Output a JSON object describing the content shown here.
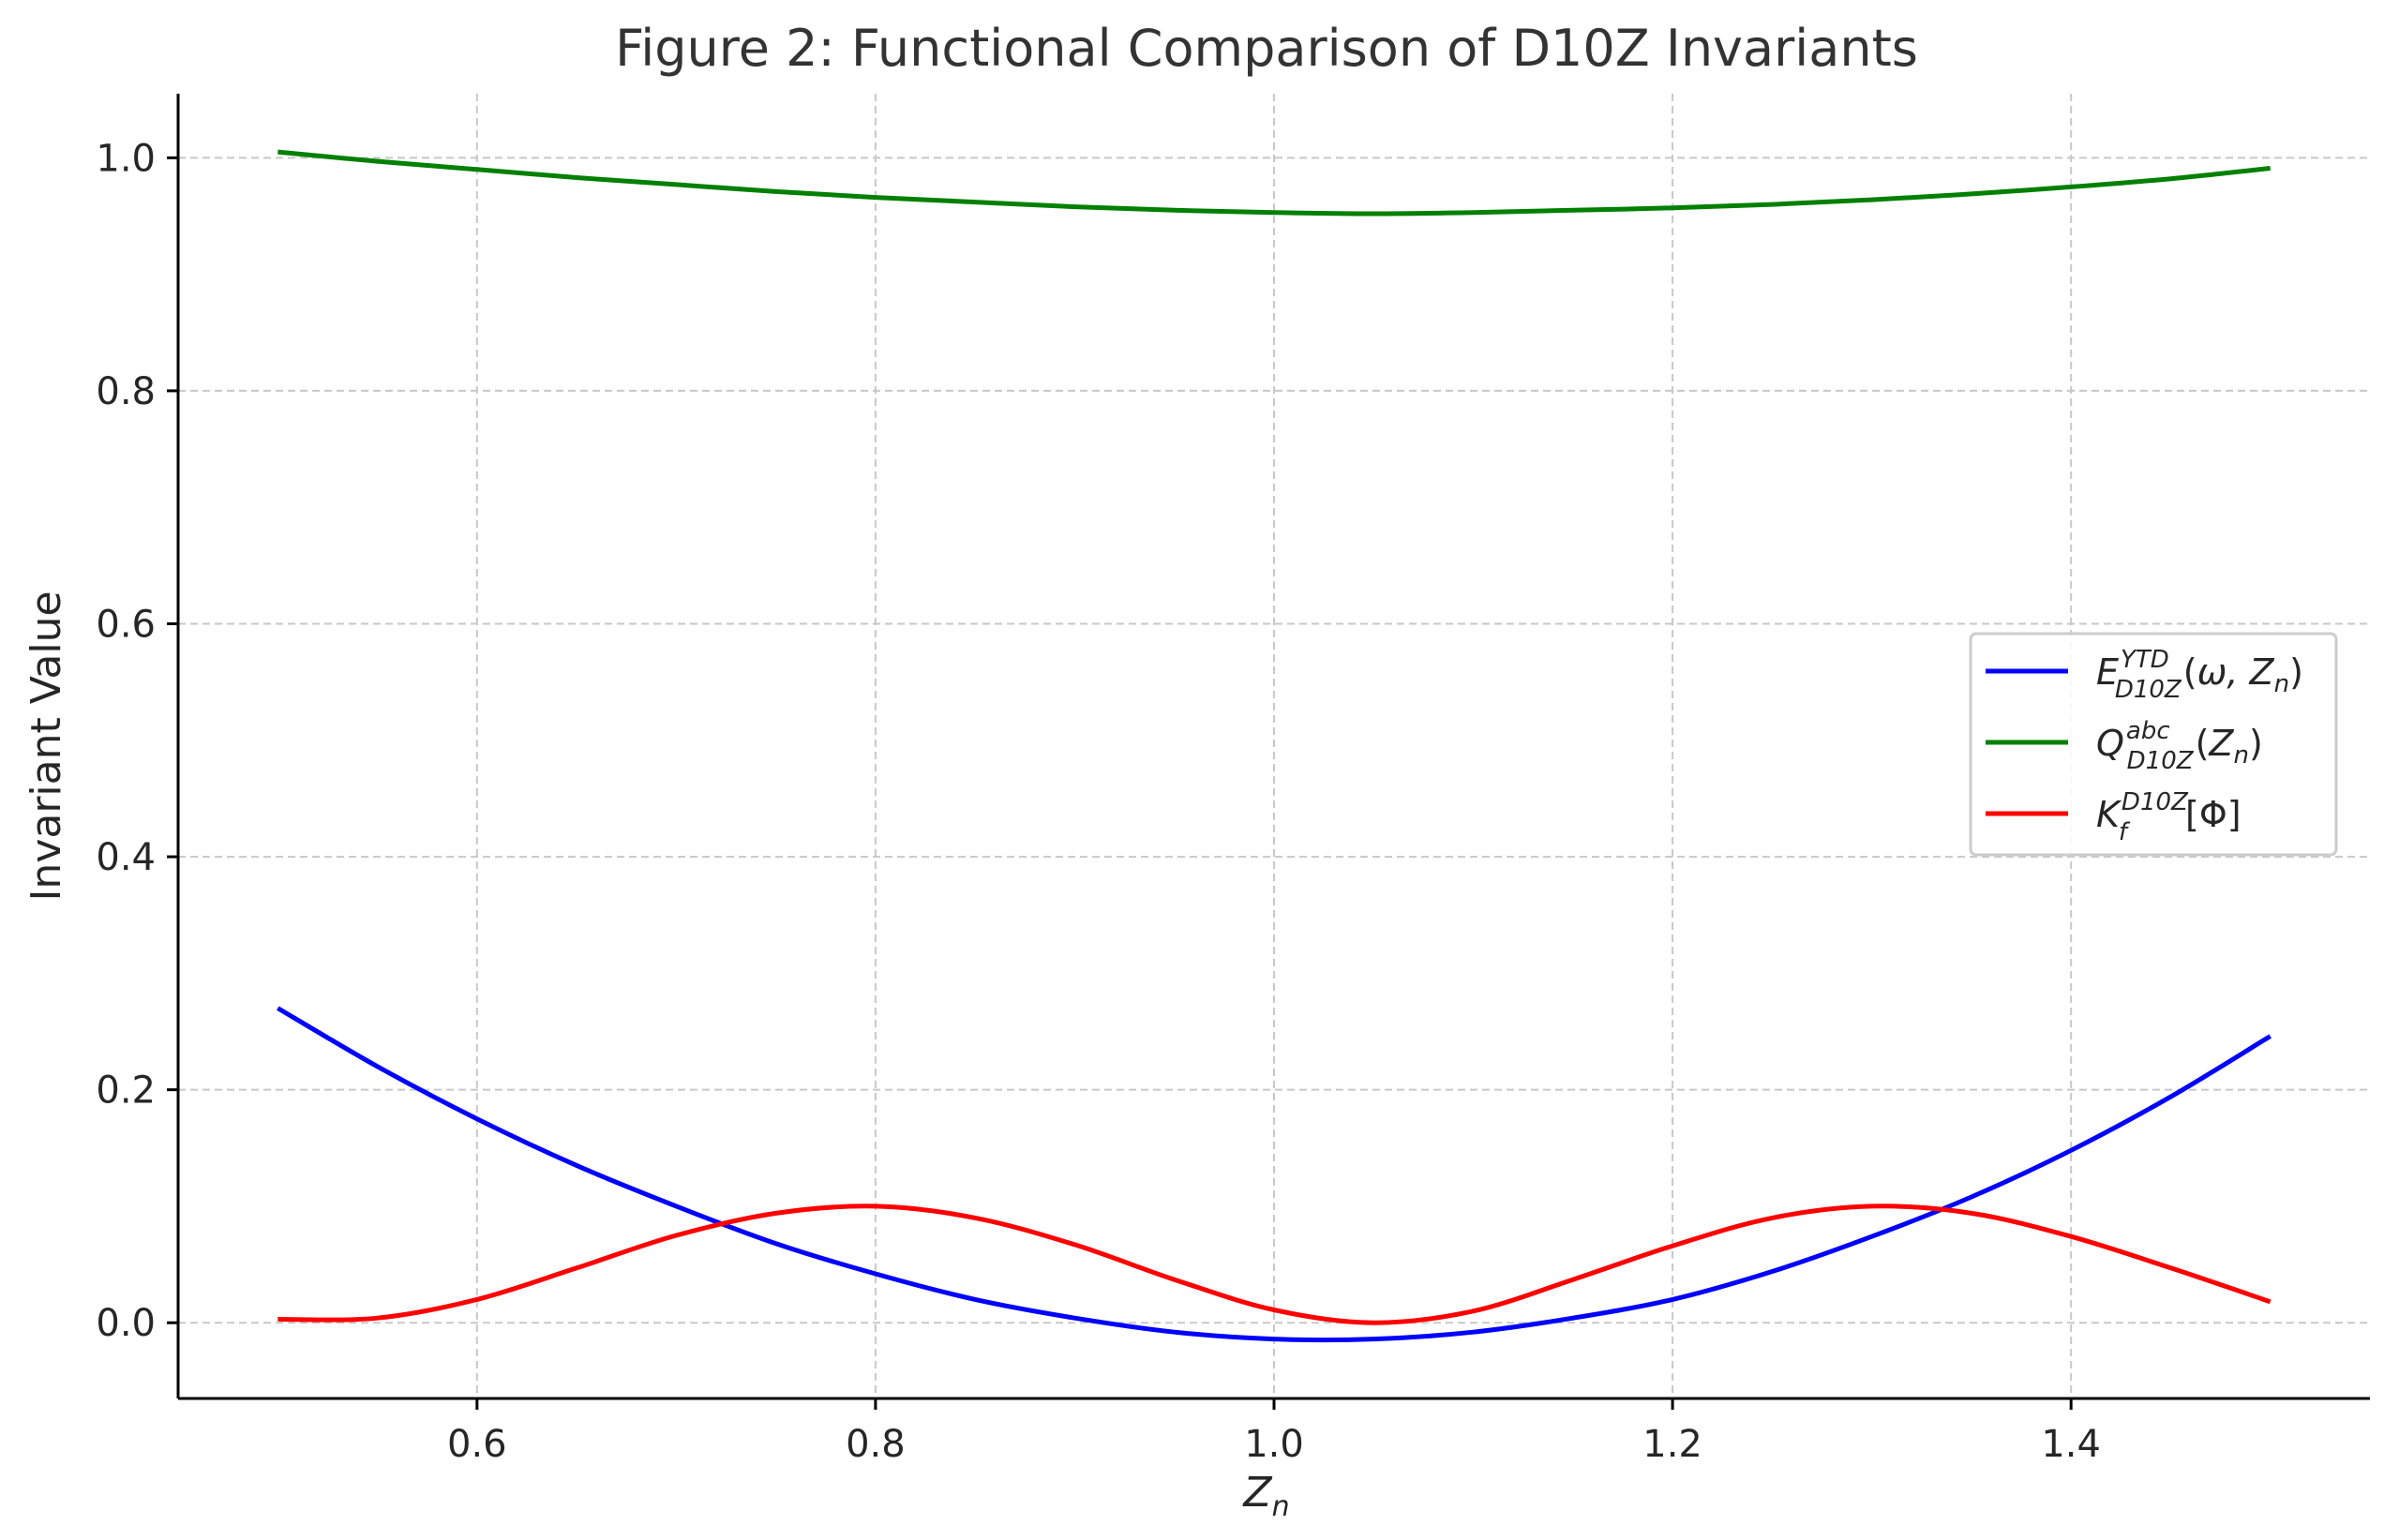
{
  "chart_data": {
    "type": "line",
    "title": "Figure 2: Functional Comparison of D10Z Invariants",
    "xlabel": "Z_n",
    "ylabel": "Invariant Value",
    "xlim": [
      0.45,
      1.55
    ],
    "ylim": [
      -0.065,
      1.055
    ],
    "xticks": [
      0.6,
      0.8,
      1.0,
      1.2,
      1.4
    ],
    "xtick_labels": [
      "0.6",
      "0.8",
      "1.0",
      "1.2",
      "1.4"
    ],
    "yticks": [
      0.0,
      0.2,
      0.4,
      0.6,
      0.8,
      1.0
    ],
    "ytick_labels": [
      "0.0",
      "0.2",
      "0.4",
      "0.6",
      "0.8",
      "1.0"
    ],
    "grid": true,
    "legend_position": "center-right",
    "x": [
      0.5,
      0.55,
      0.6,
      0.65,
      0.7,
      0.75,
      0.8,
      0.85,
      0.9,
      0.95,
      1.0,
      1.05,
      1.1,
      1.15,
      1.2,
      1.25,
      1.3,
      1.35,
      1.4,
      1.45,
      1.5
    ],
    "series": [
      {
        "name": "E_{D10Z}^{YTD}(ω, Z_n)",
        "color": "#0000ff",
        "values": [
          0.27,
          0.22,
          0.175,
          0.135,
          0.1,
          0.068,
          0.042,
          0.02,
          0.004,
          -0.008,
          -0.014,
          -0.014,
          -0.008,
          0.004,
          0.02,
          0.044,
          0.074,
          0.108,
          0.148,
          0.194,
          0.246
        ]
      },
      {
        "name": "Q_{D10Z}^{abc}(Z_n)",
        "color": "#008000",
        "values": [
          1.005,
          0.997,
          0.99,
          0.983,
          0.977,
          0.971,
          0.966,
          0.962,
          0.958,
          0.955,
          0.953,
          0.952,
          0.953,
          0.955,
          0.957,
          0.96,
          0.964,
          0.969,
          0.975,
          0.982,
          0.991
        ]
      },
      {
        "name": "K_f^{D10Z}[Φ]",
        "color": "#ff0000",
        "values": [
          0.003,
          0.004,
          0.02,
          0.047,
          0.075,
          0.094,
          0.1,
          0.09,
          0.067,
          0.037,
          0.011,
          0.0,
          0.01,
          0.037,
          0.066,
          0.09,
          0.1,
          0.094,
          0.074,
          0.047,
          0.018
        ]
      }
    ]
  }
}
